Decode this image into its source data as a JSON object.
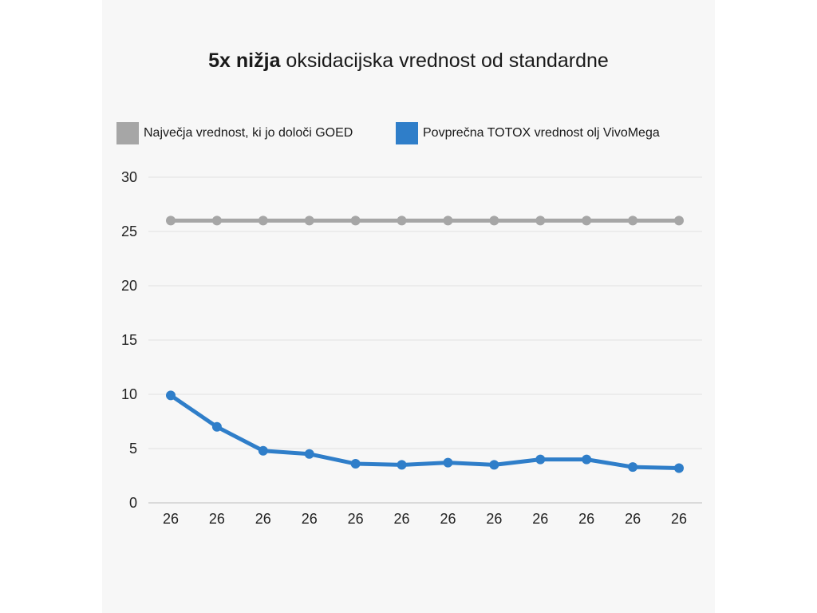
{
  "title": {
    "bold": "5x nižja",
    "rest": " oksidacijska vrednost od standardne"
  },
  "legend": [
    {
      "label": "Največja vrednost, ki jo določi GOED",
      "color": "#a6a6a6"
    },
    {
      "label": "Povprečna TOTOX vrednost olj VivoMega",
      "color": "#2f7ec9"
    }
  ],
  "chart_data": {
    "type": "line",
    "title": "5x nižja oksidacijska vrednost od standardne",
    "categories": [
      "26",
      "26",
      "26",
      "26",
      "26",
      "26",
      "26",
      "26",
      "26",
      "26",
      "26",
      "26"
    ],
    "ylim": [
      0,
      30
    ],
    "yticks": [
      0,
      5,
      10,
      15,
      20,
      25,
      30
    ],
    "grid": true,
    "legend_position": "top",
    "series": [
      {
        "name": "Največja vrednost, ki jo določi GOED",
        "color": "#a6a6a6",
        "values": [
          26,
          26,
          26,
          26,
          26,
          26,
          26,
          26,
          26,
          26,
          26,
          26
        ]
      },
      {
        "name": "Povprečna TOTOX vrednost olj VivoMega",
        "color": "#2f7ec9",
        "values": [
          9.9,
          7.0,
          4.8,
          4.5,
          3.6,
          3.5,
          3.7,
          3.5,
          4.0,
          4.0,
          3.3,
          3.2
        ]
      }
    ]
  }
}
